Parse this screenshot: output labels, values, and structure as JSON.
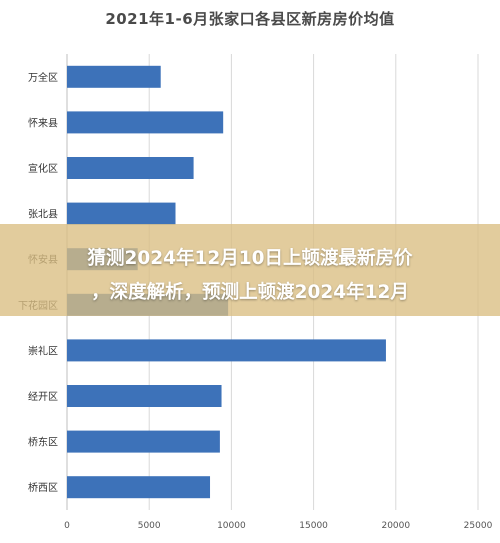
{
  "chart_data": {
    "type": "bar",
    "orientation": "horizontal",
    "title": "2021年1-6月张家口各县区新房房价均值",
    "categories": [
      "万全区",
      "怀来县",
      "宣化区",
      "张北县",
      "怀安县",
      "下花园区",
      "崇礼区",
      "经开区",
      "桥东区",
      "桥西区"
    ],
    "values": [
      5700,
      9500,
      7700,
      6600,
      4300,
      9800,
      19400,
      9400,
      9300,
      8700
    ],
    "xlim": [
      0,
      25000
    ],
    "xticks": [
      "0",
      "5000",
      "10000",
      "15000",
      "20000",
      "25000"
    ],
    "grid": true,
    "bar_color": "#3d72b9"
  },
  "overlay": {
    "line1": "猜测2024年12月10日上顿渡最新房价",
    "line2": "，深度解析，预测上顿渡2024年12月"
  }
}
